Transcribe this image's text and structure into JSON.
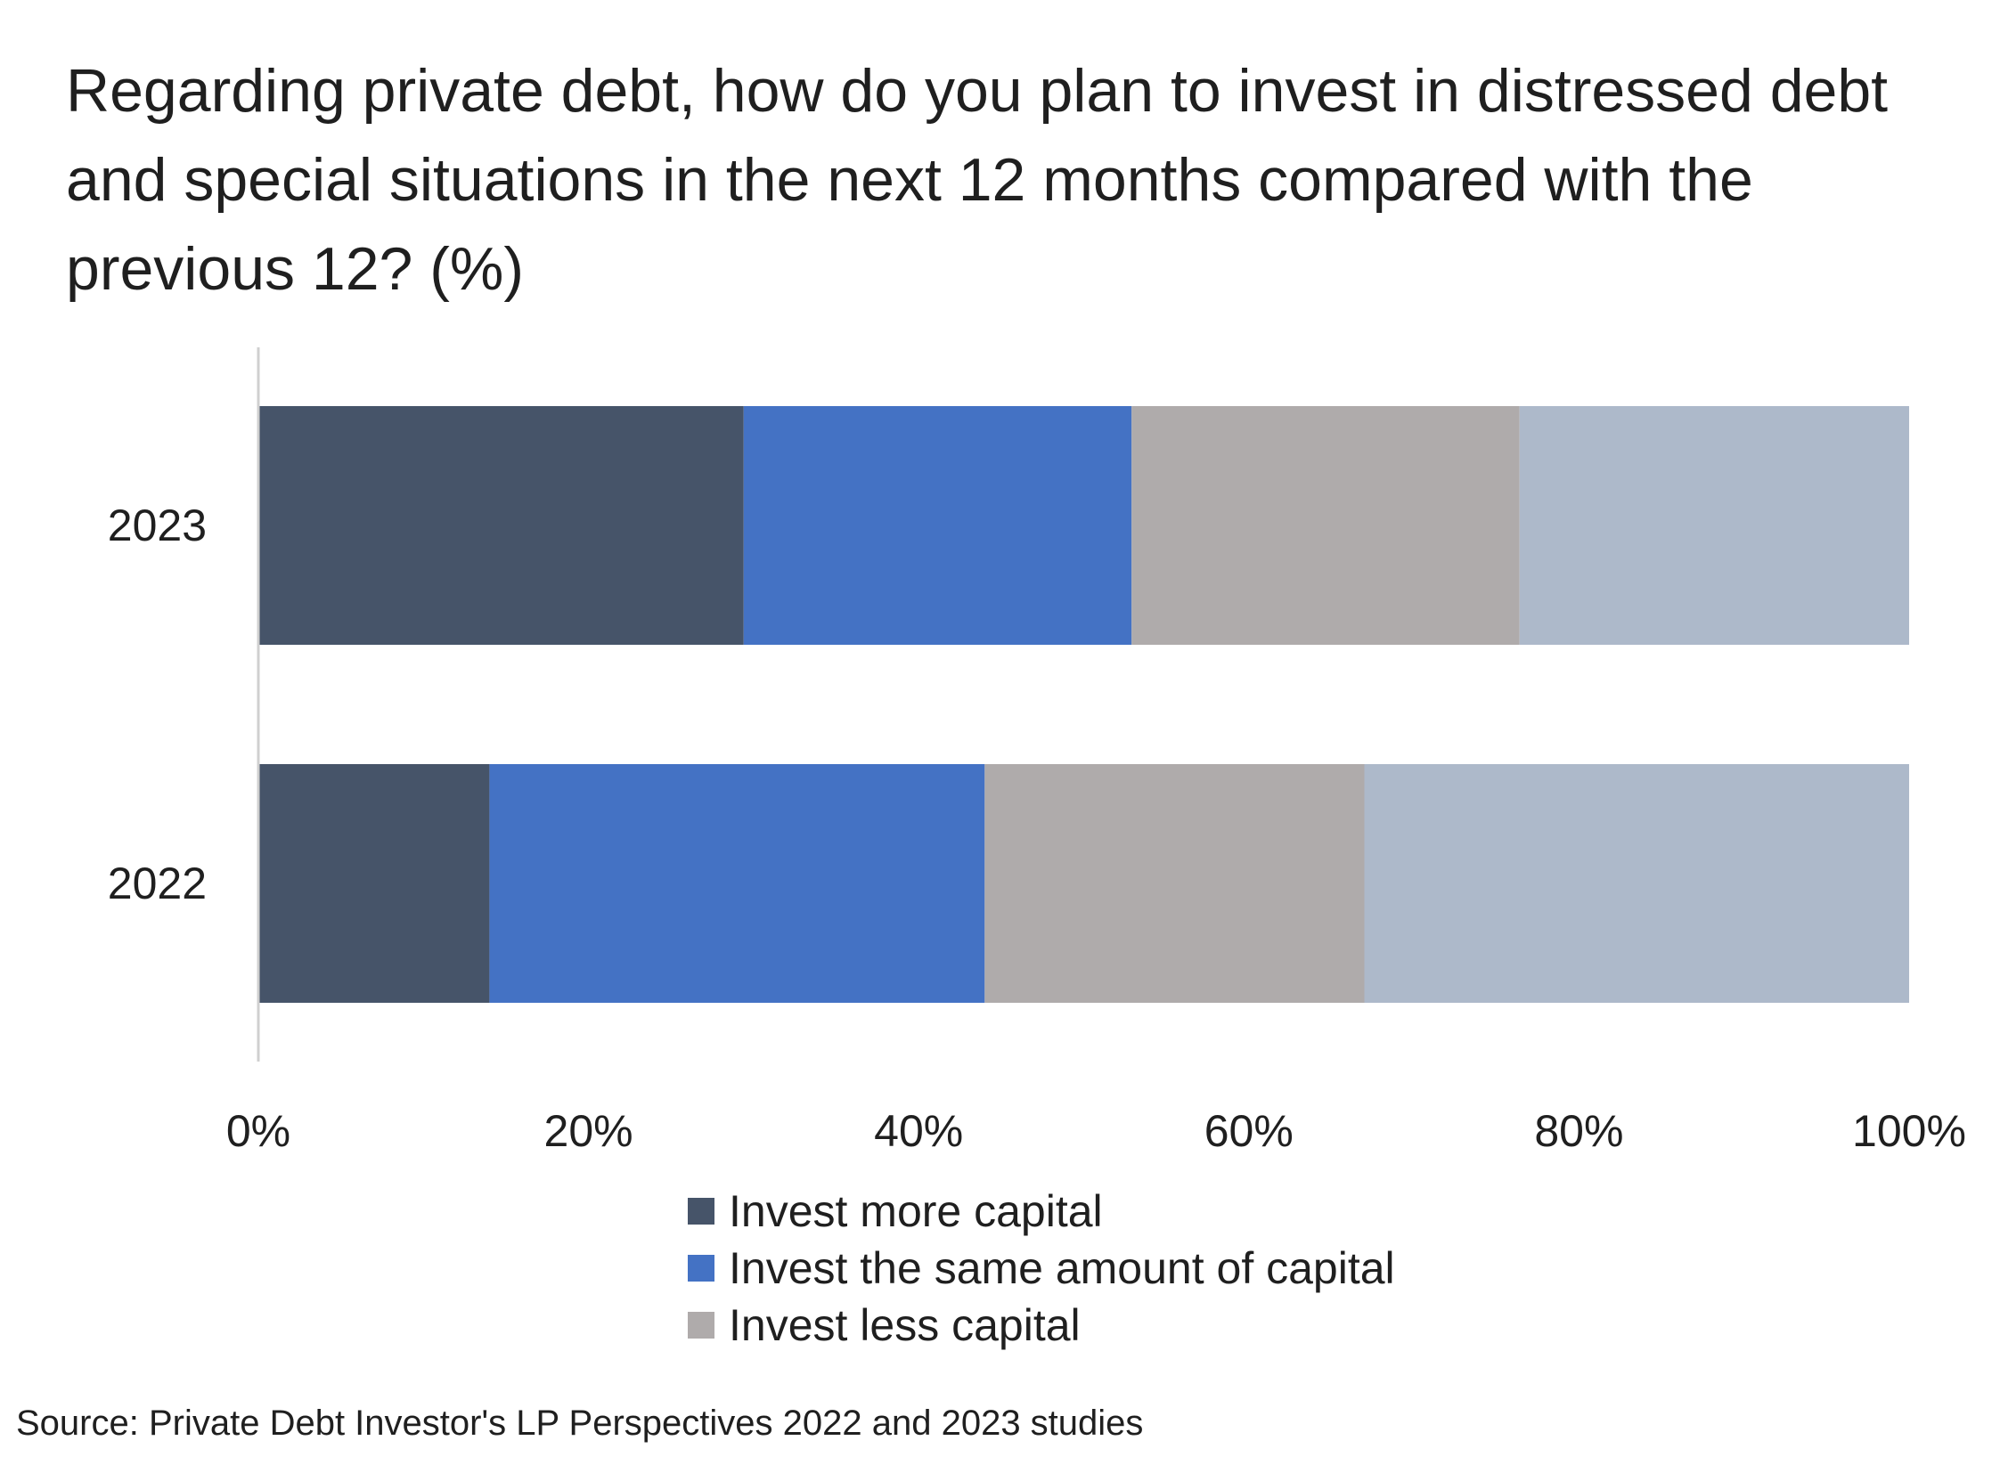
{
  "chart_data": {
    "type": "bar",
    "orientation": "horizontal",
    "stacked": true,
    "title": "Regarding private debt, how do you plan to invest in distressed debt and special situations in the next 12 months compared with the previous 12? (%)",
    "categories": [
      "2023",
      "2022"
    ],
    "series": [
      {
        "name": "Invest more capital",
        "color": "#465469",
        "values": [
          29.4,
          14
        ]
      },
      {
        "name": "Invest the same amount of capital",
        "color": "#4472C4",
        "values": [
          23.5,
          30
        ]
      },
      {
        "name": "Invest less capital",
        "color": "#AFABAB",
        "values": [
          23.5,
          23
        ]
      },
      {
        "color": "#ADB9CA",
        "values": [
          23.6,
          33
        ]
      }
    ],
    "xlim": [
      0,
      100
    ],
    "xticks": [
      "0%",
      "20%",
      "40%",
      "60%",
      "80%",
      "100%"
    ],
    "grid": false,
    "legend_position": "bottom"
  },
  "source": "Source: Private Debt Investor's LP Perspectives 2022 and 2023 studies"
}
